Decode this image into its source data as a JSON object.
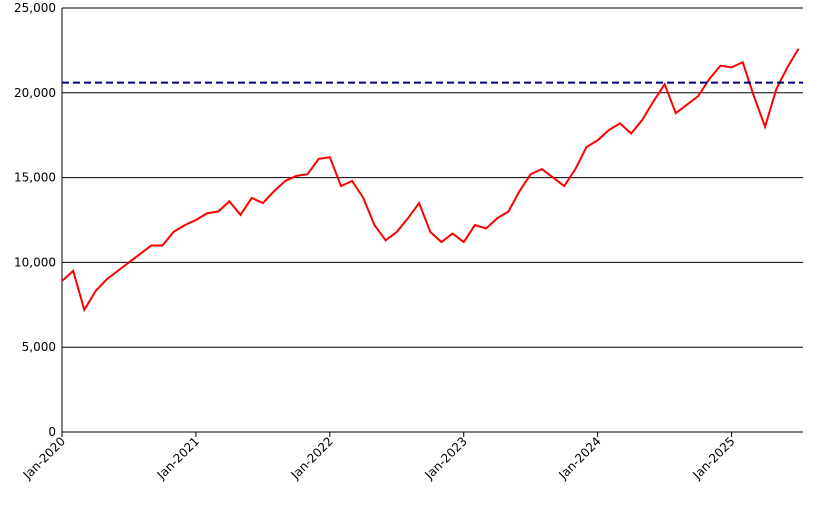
{
  "chart_data": {
    "type": "line",
    "x": [
      "Jan-2020",
      null,
      null,
      null,
      null,
      null,
      null,
      null,
      null,
      null,
      null,
      null,
      "Jan-2021",
      null,
      null,
      null,
      null,
      null,
      null,
      null,
      null,
      null,
      null,
      null,
      "Jan-2022",
      null,
      null,
      null,
      null,
      null,
      null,
      null,
      null,
      null,
      null,
      null,
      "Jan-2023",
      null,
      null,
      null,
      null,
      null,
      null,
      null,
      null,
      null,
      null,
      null,
      "Jan-2024",
      null,
      null,
      null,
      null,
      null,
      null,
      null,
      null,
      null,
      null,
      null,
      "Jan-2025",
      null,
      null,
      null,
      null,
      null,
      null
    ],
    "series": [
      {
        "color": "#ff0000",
        "values": [
          8900,
          9500,
          7200,
          8300,
          9000,
          9500,
          10000,
          10500,
          11000,
          11000,
          11800,
          12200,
          12500,
          12900,
          13000,
          13600,
          12800,
          13800,
          13500,
          14200,
          14800,
          15100,
          15200,
          16100,
          16200,
          14500,
          14800,
          13800,
          12200,
          11300,
          11800,
          12600,
          13500,
          11800,
          11200,
          11700,
          11200,
          12200,
          12000,
          12600,
          13000,
          14200,
          15200,
          15500,
          15000,
          14500,
          15500,
          16800,
          17200,
          17800,
          18200,
          17600,
          18400,
          19500,
          20500,
          18800,
          19300,
          19800,
          20800,
          21600,
          21500,
          21800,
          19800,
          18000,
          20200,
          21500,
          22600
        ]
      }
    ],
    "reference_line": {
      "value": 20600,
      "color": "#000080"
    },
    "ylim": [
      0,
      25000
    ],
    "yticks": [
      0,
      {
        "value": 5000,
        "label": "5,000"
      },
      {
        "value": 10000,
        "label": "10,000"
      },
      {
        "value": 15000,
        "label": "15,000"
      },
      {
        "value": 20000,
        "label": "20,000"
      },
      {
        "value": 25000,
        "label": "25,000"
      }
    ],
    "grid": true
  }
}
